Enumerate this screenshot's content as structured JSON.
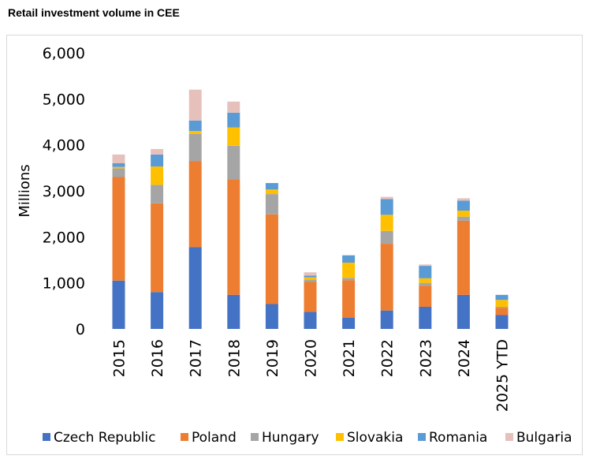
{
  "page": {
    "title": "Retail investment volume in CEE"
  },
  "chart_data": {
    "type": "bar",
    "stacked": true,
    "title": "",
    "xlabel": "",
    "ylabel": "Millions",
    "ylim": [
      0,
      6000
    ],
    "yticks": [
      0,
      1000,
      2000,
      3000,
      4000,
      5000,
      6000
    ],
    "ytick_labels": [
      "0",
      "1,000",
      "2,000",
      "3,000",
      "4,000",
      "5,000",
      "6,000"
    ],
    "categories": [
      "2015",
      "2016",
      "2017",
      "2018",
      "2019",
      "2020",
      "2021",
      "2022",
      "2023",
      "2024",
      "2025 YTD"
    ],
    "grid": false,
    "legend_position": "bottom",
    "series": [
      {
        "name": "Czech Republic",
        "color": "#4472C4",
        "values": [
          1050,
          800,
          1780,
          740,
          540,
          370,
          240,
          400,
          480,
          740,
          300
        ]
      },
      {
        "name": "Poland",
        "color": "#ED7D31",
        "values": [
          2250,
          1930,
          1870,
          2510,
          1950,
          650,
          820,
          1450,
          460,
          1610,
          160
        ]
      },
      {
        "name": "Hungary",
        "color": "#A5A5A5",
        "values": [
          190,
          400,
          590,
          730,
          440,
          50,
          50,
          280,
          60,
          90,
          20
        ]
      },
      {
        "name": "Slovakia",
        "color": "#FFC000",
        "values": [
          30,
          400,
          60,
          400,
          100,
          50,
          330,
          350,
          100,
          130,
          150
        ]
      },
      {
        "name": "Romania",
        "color": "#5B9BD5",
        "values": [
          80,
          260,
          230,
          320,
          140,
          40,
          160,
          340,
          270,
          220,
          110
        ]
      },
      {
        "name": "Bulgaria",
        "color": "#E6C1BC",
        "values": [
          190,
          120,
          670,
          240,
          0,
          70,
          0,
          50,
          30,
          50,
          0
        ]
      }
    ]
  }
}
